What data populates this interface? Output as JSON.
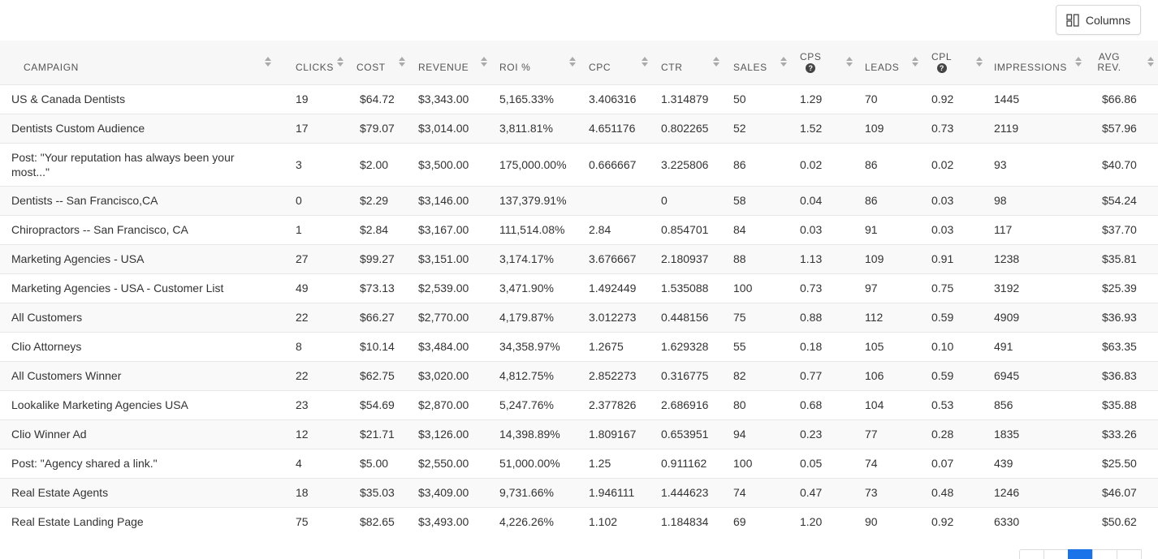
{
  "toolbar": {
    "columns_label": "Columns",
    "columns_icon": "grid-columns-icon"
  },
  "table": {
    "headers": {
      "campaign": "CAMPAIGN",
      "clicks": "CLICKS",
      "cost": "COST",
      "revenue": "REVENUE",
      "roi": "ROI %",
      "cpc": "CPC",
      "ctr": "CTR",
      "sales": "SALES",
      "cps": "CPS",
      "leads": "LEADS",
      "cpl": "CPL",
      "impressions": "IMPRESSIONS",
      "avg_rev": "AVG REV."
    },
    "rows": [
      {
        "campaign": "US & Canada Dentists",
        "clicks": "19",
        "cost": "$64.72",
        "revenue": "$3,343.00",
        "roi": "5,165.33%",
        "cpc": "3.406316",
        "ctr": "1.314879",
        "sales": "50",
        "cps": "1.29",
        "leads": "70",
        "cpl": "0.92",
        "impressions": "1445",
        "avg_rev": "$66.86"
      },
      {
        "campaign": "Dentists Custom Audience",
        "clicks": "17",
        "cost": "$79.07",
        "revenue": "$3,014.00",
        "roi": "3,811.81%",
        "cpc": "4.651176",
        "ctr": "0.802265",
        "sales": "52",
        "cps": "1.52",
        "leads": "109",
        "cpl": "0.73",
        "impressions": "2119",
        "avg_rev": "$57.96"
      },
      {
        "campaign": "Post: \"Your reputation has always been your most...\"",
        "clicks": "3",
        "cost": "$2.00",
        "revenue": "$3,500.00",
        "roi": "175,000.00%",
        "cpc": "0.666667",
        "ctr": "3.225806",
        "sales": "86",
        "cps": "0.02",
        "leads": "86",
        "cpl": "0.02",
        "impressions": "93",
        "avg_rev": "$40.70"
      },
      {
        "campaign": "Dentists -- San Francisco,CA",
        "clicks": "0",
        "cost": "$2.29",
        "revenue": "$3,146.00",
        "roi": "137,379.91%",
        "cpc": "",
        "ctr": "0",
        "sales": "58",
        "cps": "0.04",
        "leads": "86",
        "cpl": "0.03",
        "impressions": "98",
        "avg_rev": "$54.24"
      },
      {
        "campaign": "Chiropractors -- San Francisco, CA",
        "clicks": "1",
        "cost": "$2.84",
        "revenue": "$3,167.00",
        "roi": "111,514.08%",
        "cpc": "2.84",
        "ctr": "0.854701",
        "sales": "84",
        "cps": "0.03",
        "leads": "91",
        "cpl": "0.03",
        "impressions": "117",
        "avg_rev": "$37.70"
      },
      {
        "campaign": "Marketing Agencies - USA",
        "clicks": "27",
        "cost": "$99.27",
        "revenue": "$3,151.00",
        "roi": "3,174.17%",
        "cpc": "3.676667",
        "ctr": "2.180937",
        "sales": "88",
        "cps": "1.13",
        "leads": "109",
        "cpl": "0.91",
        "impressions": "1238",
        "avg_rev": "$35.81"
      },
      {
        "campaign": "Marketing Agencies - USA - Customer List",
        "clicks": "49",
        "cost": "$73.13",
        "revenue": "$2,539.00",
        "roi": "3,471.90%",
        "cpc": "1.492449",
        "ctr": "1.535088",
        "sales": "100",
        "cps": "0.73",
        "leads": "97",
        "cpl": "0.75",
        "impressions": "3192",
        "avg_rev": "$25.39"
      },
      {
        "campaign": "All Customers",
        "clicks": "22",
        "cost": "$66.27",
        "revenue": "$2,770.00",
        "roi": "4,179.87%",
        "cpc": "3.012273",
        "ctr": "0.448156",
        "sales": "75",
        "cps": "0.88",
        "leads": "112",
        "cpl": "0.59",
        "impressions": "4909",
        "avg_rev": "$36.93"
      },
      {
        "campaign": "Clio Attorneys",
        "clicks": "8",
        "cost": "$10.14",
        "revenue": "$3,484.00",
        "roi": "34,358.97%",
        "cpc": "1.2675",
        "ctr": "1.629328",
        "sales": "55",
        "cps": "0.18",
        "leads": "105",
        "cpl": "0.10",
        "impressions": "491",
        "avg_rev": "$63.35"
      },
      {
        "campaign": "All Customers Winner",
        "clicks": "22",
        "cost": "$62.75",
        "revenue": "$3,020.00",
        "roi": "4,812.75%",
        "cpc": "2.852273",
        "ctr": "0.316775",
        "sales": "82",
        "cps": "0.77",
        "leads": "106",
        "cpl": "0.59",
        "impressions": "6945",
        "avg_rev": "$36.83"
      },
      {
        "campaign": "Lookalike Marketing Agencies USA",
        "clicks": "23",
        "cost": "$54.69",
        "revenue": "$2,870.00",
        "roi": "5,247.76%",
        "cpc": "2.377826",
        "ctr": "2.686916",
        "sales": "80",
        "cps": "0.68",
        "leads": "104",
        "cpl": "0.53",
        "impressions": "856",
        "avg_rev": "$35.88"
      },
      {
        "campaign": "Clio Winner Ad",
        "clicks": "12",
        "cost": "$21.71",
        "revenue": "$3,126.00",
        "roi": "14,398.89%",
        "cpc": "1.809167",
        "ctr": "0.653951",
        "sales": "94",
        "cps": "0.23",
        "leads": "77",
        "cpl": "0.28",
        "impressions": "1835",
        "avg_rev": "$33.26"
      },
      {
        "campaign": "Post: \"Agency shared a link.\"",
        "clicks": "4",
        "cost": "$5.00",
        "revenue": "$2,550.00",
        "roi": "51,000.00%",
        "cpc": "1.25",
        "ctr": "0.911162",
        "sales": "100",
        "cps": "0.05",
        "leads": "74",
        "cpl": "0.07",
        "impressions": "439",
        "avg_rev": "$25.50"
      },
      {
        "campaign": "Real Estate Agents",
        "clicks": "18",
        "cost": "$35.03",
        "revenue": "$3,409.00",
        "roi": "9,731.66%",
        "cpc": "1.946111",
        "ctr": "1.444623",
        "sales": "74",
        "cps": "0.47",
        "leads": "73",
        "cpl": "0.48",
        "impressions": "1246",
        "avg_rev": "$46.07"
      },
      {
        "campaign": "Real Estate Landing Page",
        "clicks": "75",
        "cost": "$82.65",
        "revenue": "$3,493.00",
        "roi": "4,226.26%",
        "cpc": "1.102",
        "ctr": "1.184834",
        "sales": "69",
        "cps": "1.20",
        "leads": "90",
        "cpl": "0.92",
        "impressions": "6330",
        "avg_rev": "$50.62"
      }
    ]
  },
  "colors": {
    "header_bg": "#f7f7f7",
    "active_page": "#1a73e8"
  }
}
